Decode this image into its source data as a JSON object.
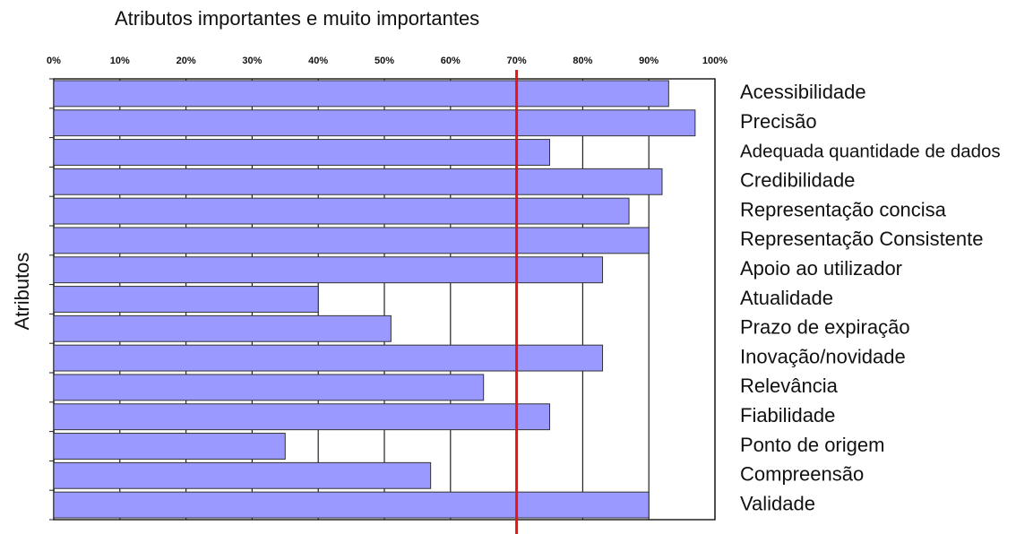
{
  "chart_data": {
    "type": "barh",
    "title": "Atributos importantes e muito importantes",
    "y_label": "Atributos",
    "categories": [
      "Acessibilidade",
      "Precisão",
      "Adequada quantidade de dados",
      "Credibilidade",
      "Representação concisa",
      "Representação Consistente",
      "Apoio ao utilizador",
      "Atualidade",
      "Prazo de expiração",
      "Inovação/novidade",
      "Relevância",
      "Fiabilidade",
      "Ponto de origem",
      "Compreensão",
      "Validade"
    ],
    "values": [
      93,
      97,
      75,
      92,
      87,
      90,
      83,
      40,
      51,
      83,
      65,
      75,
      35,
      57,
      90
    ],
    "color": "#9999ff",
    "xlim": [
      0,
      100
    ],
    "xticks": [
      {
        "value": 0,
        "label": "0%"
      },
      {
        "value": 10,
        "label": "10%"
      },
      {
        "value": 20,
        "label": "20%"
      },
      {
        "value": 30,
        "label": "30%"
      },
      {
        "value": 40,
        "label": "40%"
      },
      {
        "value": 50,
        "label": "50%"
      },
      {
        "value": 60,
        "label": "60%"
      },
      {
        "value": 70,
        "label": "70%"
      },
      {
        "value": 80,
        "label": "80%"
      },
      {
        "value": 90,
        "label": "90%"
      },
      {
        "value": 100,
        "label": "100%"
      }
    ],
    "grid": true,
    "reference_line": {
      "value": 70,
      "color": "#ee1111"
    }
  }
}
